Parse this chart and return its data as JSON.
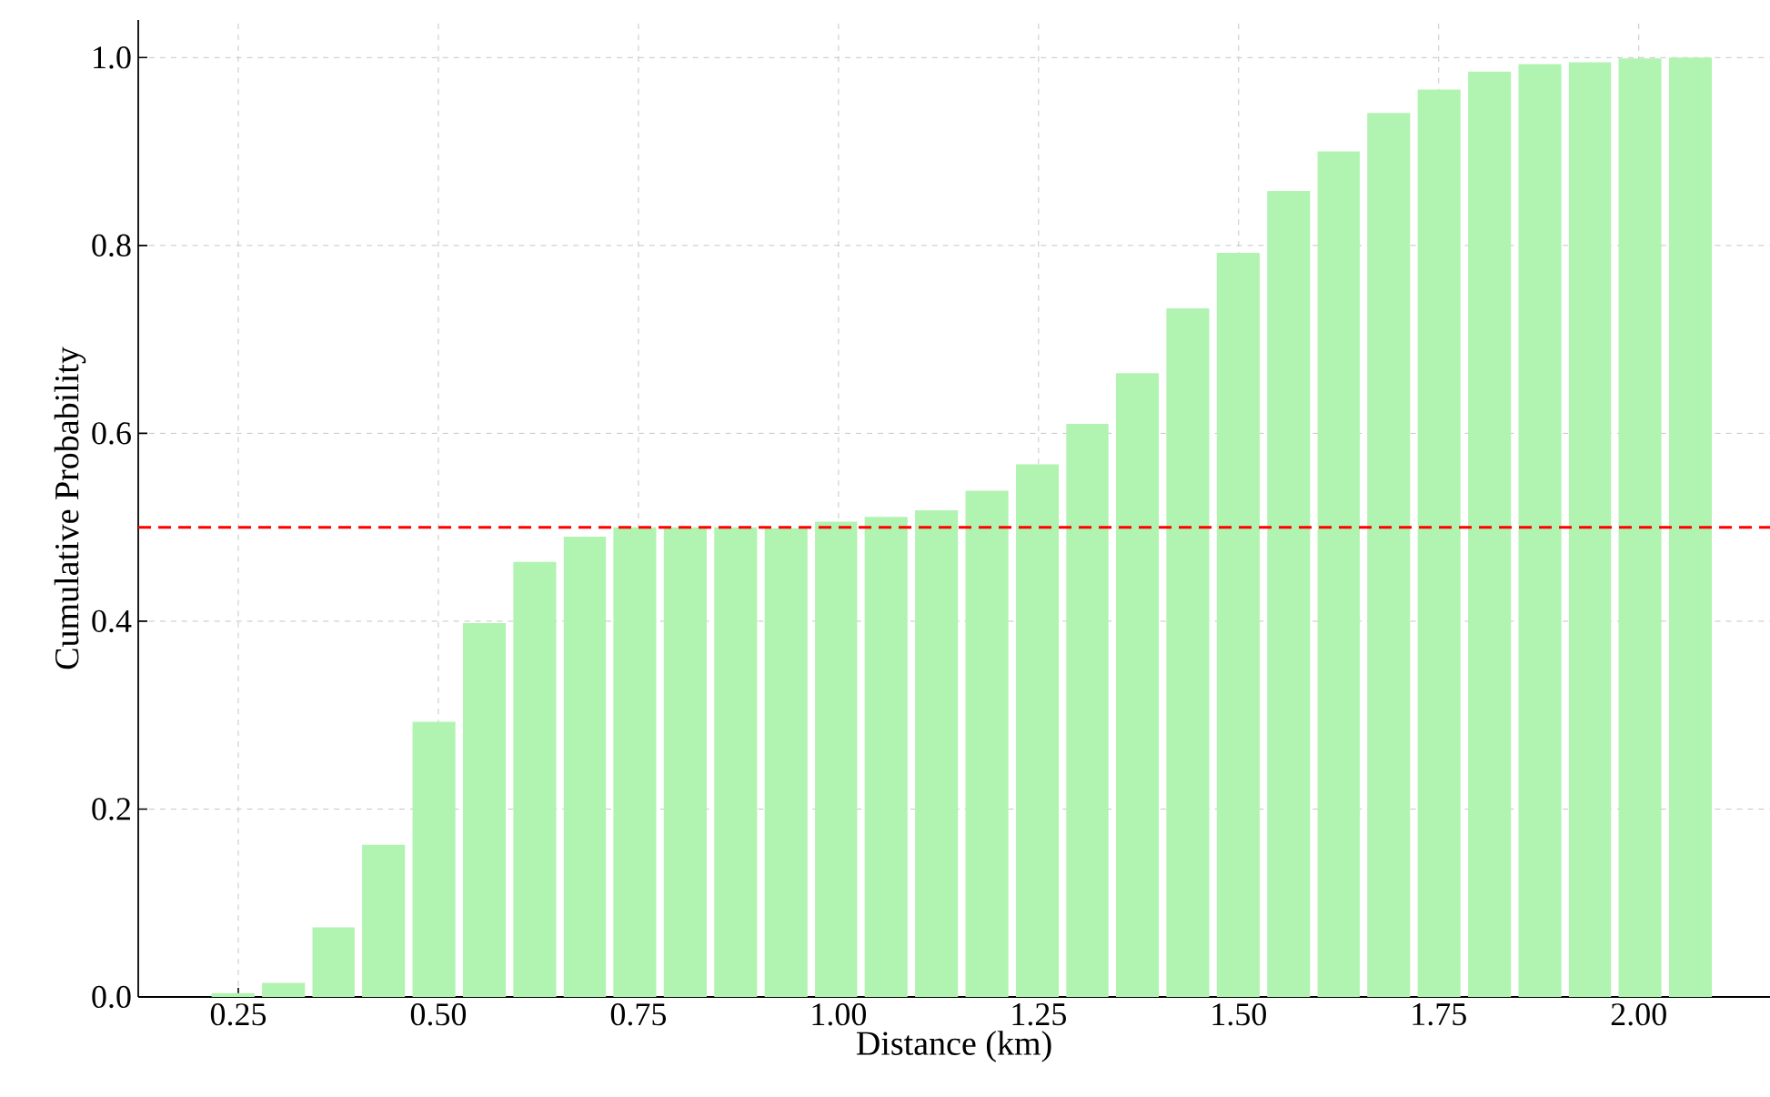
{
  "chart_data": {
    "type": "histogram",
    "xlabel": "Distance (km)",
    "ylabel": "Cumulative Probability",
    "bins": [
      0.212,
      0.275,
      0.338,
      0.4,
      0.463,
      0.526,
      0.589,
      0.652,
      0.714,
      0.777,
      0.84,
      0.903,
      0.966,
      1.028,
      1.091,
      1.154,
      1.217,
      1.28,
      1.342,
      1.405,
      1.468,
      1.531,
      1.594,
      1.656,
      1.719,
      1.782,
      1.845,
      1.908,
      1.97,
      2.033,
      2.096
    ],
    "values": [
      0.004,
      0.015,
      0.074,
      0.162,
      0.293,
      0.398,
      0.463,
      0.49,
      0.5,
      0.5,
      0.5,
      0.499,
      0.506,
      0.511,
      0.518,
      0.539,
      0.567,
      0.61,
      0.664,
      0.733,
      0.792,
      0.858,
      0.9,
      0.941,
      0.966,
      0.985,
      0.993,
      0.995,
      0.999,
      1.0
    ],
    "color": "#b1f3b1",
    "xlim": [
      0.125,
      2.164
    ],
    "ylim": [
      0,
      1.04
    ],
    "xticks": [
      {
        "value": 0.25,
        "label": "0.25"
      },
      {
        "value": 0.5,
        "label": "0.50"
      },
      {
        "value": 0.75,
        "label": "0.75"
      },
      {
        "value": 1.0,
        "label": "1.00"
      },
      {
        "value": 1.25,
        "label": "1.25"
      },
      {
        "value": 1.5,
        "label": "1.50"
      },
      {
        "value": 1.75,
        "label": "1.75"
      },
      {
        "value": 2.0,
        "label": "2.00"
      }
    ],
    "yticks": [
      {
        "value": 0,
        "label": "0.0"
      },
      {
        "value": 0.2,
        "label": "0.2"
      },
      {
        "value": 0.4,
        "label": "0.4"
      },
      {
        "value": 0.6,
        "label": "0.6"
      },
      {
        "value": 0.8,
        "label": "0.8"
      },
      {
        "value": 1.0,
        "label": "1.0"
      }
    ],
    "ref_lines": [
      {
        "axis": "y",
        "value": 0.5,
        "color": "#ff0000",
        "line_style": "dashed"
      }
    ],
    "grid": true
  }
}
